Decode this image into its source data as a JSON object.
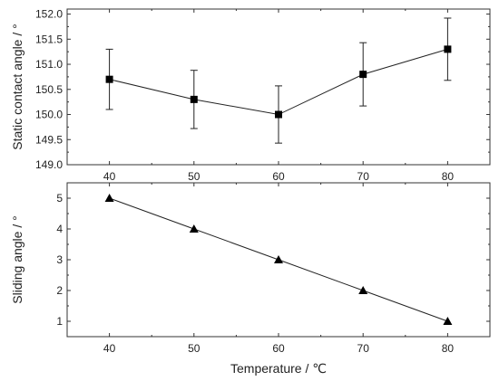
{
  "chart_data": [
    {
      "type": "line",
      "x": [
        40,
        50,
        60,
        70,
        80
      ],
      "series": [
        {
          "values": [
            150.7,
            150.3,
            150.0,
            150.8,
            151.3
          ],
          "errors": [
            0.6,
            0.58,
            0.57,
            0.63,
            0.62
          ],
          "marker": "square"
        }
      ],
      "ylabel": "Static contact angle / °",
      "xlabel": "",
      "xlim": [
        35,
        85
      ],
      "ylim": [
        149.0,
        152.1
      ],
      "yticks": [
        "149.0",
        "149.5",
        "150.0",
        "150.5",
        "151.0",
        "151.5",
        "152.0"
      ],
      "xticks": [
        "40",
        "50",
        "60",
        "70",
        "80"
      ],
      "grid": false
    },
    {
      "type": "line",
      "x": [
        40,
        50,
        60,
        70,
        80
      ],
      "series": [
        {
          "values": [
            5,
            4,
            3,
            2,
            1
          ],
          "marker": "triangle"
        }
      ],
      "ylabel": "Sliding angle / °",
      "xlabel": "Temperature / ℃",
      "xlim": [
        35,
        85
      ],
      "ylim": [
        0.5,
        5.5
      ],
      "yticks": [
        "1",
        "2",
        "3",
        "4",
        "5"
      ],
      "xticks": [
        "40",
        "50",
        "60",
        "70",
        "80"
      ],
      "grid": false
    }
  ],
  "colors": {
    "line": "#222222",
    "marker": "#000000",
    "axis": "#333333"
  }
}
